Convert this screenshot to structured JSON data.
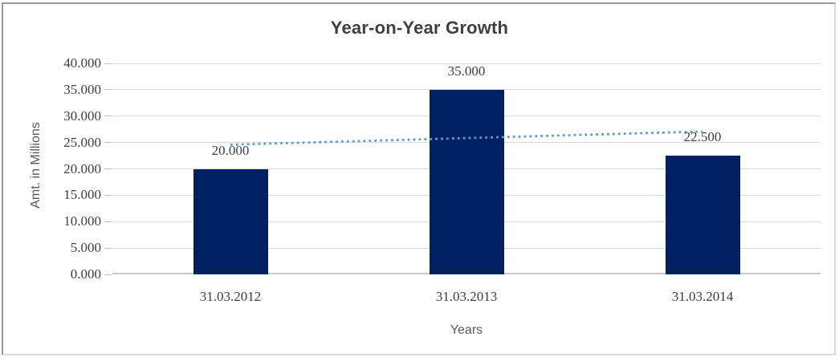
{
  "chart_data": {
    "type": "bar",
    "title": "Year-on-Year Growth",
    "xlabel": "Years",
    "ylabel": "Amt. in Millions",
    "categories": [
      "31.03.2012",
      "31.03.2013",
      "31.03.2014"
    ],
    "values": [
      20000,
      35000,
      22500
    ],
    "value_labels": [
      "20.000",
      "35.000",
      "22.500"
    ],
    "y_ticks": [
      "0.000",
      "5.000",
      "10.000",
      "15.000",
      "20.000",
      "25.000",
      "30.000",
      "35.000",
      "40.000"
    ],
    "y_tick_values": [
      0,
      5000,
      10000,
      15000,
      20000,
      25000,
      30000,
      35000,
      40000
    ],
    "ylim": [
      0,
      40000
    ],
    "grid": "horizontal",
    "legend": "none",
    "bar_color": "#002060",
    "trendline": {
      "type": "linear",
      "style": "dotted",
      "color": "#5b9bd5",
      "start_value": 24583,
      "end_value": 27083
    }
  },
  "style": {
    "background": "#ffffff",
    "title_color": "#3f3f3f",
    "axis_title_color": "#595959",
    "tick_label_color": "#3f3f3f",
    "data_label_color": "#3f3f3f",
    "gridline_color": "#d9d9d9",
    "axis_line_color": "#c9c9c9",
    "tick_mark_color": "#bfbfbf"
  }
}
